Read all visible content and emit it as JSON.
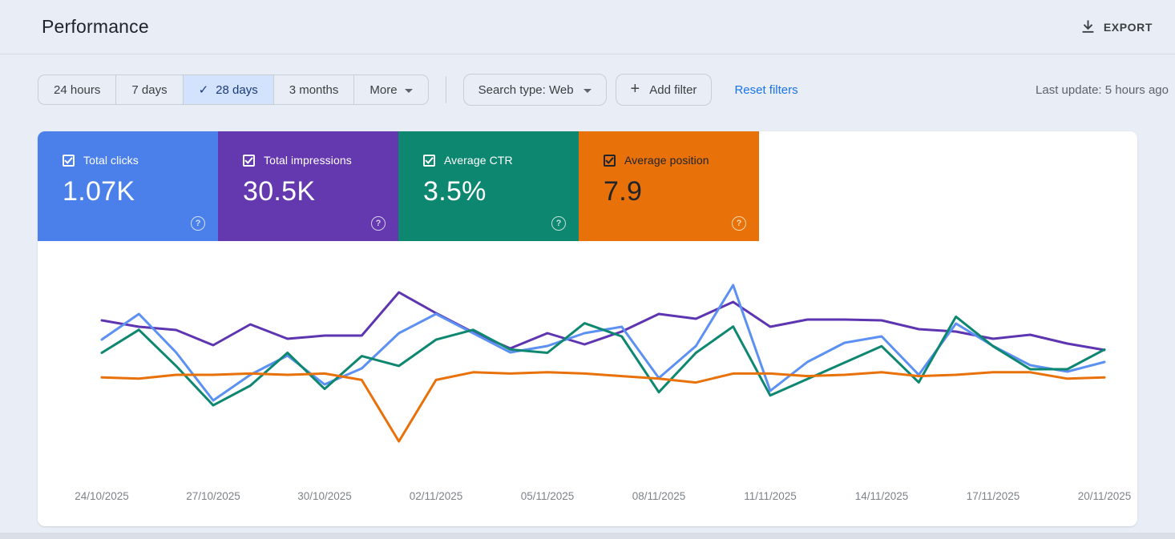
{
  "header": {
    "title": "Performance",
    "export_label": "EXPORT"
  },
  "filters": {
    "date_tabs": [
      {
        "label": "24 hours",
        "selected": false,
        "dropdown": false
      },
      {
        "label": "7 days",
        "selected": false,
        "dropdown": false
      },
      {
        "label": "28 days",
        "selected": true,
        "dropdown": false
      },
      {
        "label": "3 months",
        "selected": false,
        "dropdown": false
      },
      {
        "label": "More",
        "selected": false,
        "dropdown": true
      }
    ],
    "selected_check": "✓",
    "search_type_label": "Search type: Web",
    "add_filter_label": "Add filter",
    "add_filter_plus": "+",
    "reset_label": "Reset filters",
    "last_update": "Last update: 5 hours ago"
  },
  "metrics": [
    {
      "label": "Total clicks",
      "value": "1.07K",
      "color": "#4b80ea",
      "checked": true,
      "dark_text": false
    },
    {
      "label": "Total impressions",
      "value": "30.5K",
      "color": "#6438af",
      "checked": true,
      "dark_text": false
    },
    {
      "label": "Average CTR",
      "value": "3.5%",
      "color": "#0e8771",
      "checked": true,
      "dark_text": false
    },
    {
      "label": "Average position",
      "value": "7.9",
      "color": "#e8710a",
      "checked": true,
      "dark_text": true
    }
  ],
  "help_glyph": "?",
  "chart_data": {
    "type": "line",
    "grid": false,
    "legend_position": "none",
    "x": [
      "24/10/2025",
      "25/10/2025",
      "26/10/2025",
      "27/10/2025",
      "28/10/2025",
      "29/10/2025",
      "30/10/2025",
      "31/10/2025",
      "01/11/2025",
      "02/11/2025",
      "03/11/2025",
      "04/11/2025",
      "05/11/2025",
      "06/11/2025",
      "07/11/2025",
      "08/11/2025",
      "09/11/2025",
      "10/11/2025",
      "11/11/2025",
      "12/11/2025",
      "13/11/2025",
      "14/11/2025",
      "15/11/2025",
      "16/11/2025",
      "17/11/2025",
      "18/11/2025",
      "19/11/2025",
      "20/11/2025"
    ],
    "x_tick_labels": [
      "24/10/2025",
      "27/10/2025",
      "30/10/2025",
      "02/11/2025",
      "05/11/2025",
      "08/11/2025",
      "11/11/2025",
      "14/11/2025",
      "17/11/2025",
      "20/11/2025"
    ],
    "series": [
      {
        "name": "Total impressions",
        "color": "#5e35b1",
        "inverted": false,
        "axis_range": [
          -60,
          1620
        ],
        "values": [
          1152,
          1104,
          1080,
          966,
          1122,
          1014,
          1038,
          1038,
          1362,
          1206,
          1062,
          942,
          1056,
          972,
          1068,
          1200,
          1164,
          1290,
          1104,
          1158,
          1158,
          1152,
          1086,
          1068,
          1014,
          1044,
          978,
          930
        ]
      },
      {
        "name": "Total clicks",
        "color": "#5c90f2",
        "inverted": false,
        "axis_range": [
          -2.5,
          67.5
        ],
        "values": [
          42,
          50,
          38,
          23,
          31,
          37,
          28,
          33,
          44,
          50,
          44,
          38,
          40,
          44,
          46,
          30,
          40,
          59,
          26,
          35,
          41,
          43,
          31,
          47,
          40,
          34,
          32,
          35
        ]
      },
      {
        "name": "Average CTR",
        "color": "#0e8771",
        "inverted": false,
        "axis_range": [
          -0.24,
          6.59
        ],
        "values": [
          3.7,
          4.4,
          3.3,
          2.1,
          2.7,
          3.7,
          2.6,
          3.6,
          3.3,
          4.1,
          4.4,
          3.8,
          3.7,
          4.6,
          4.2,
          2.5,
          3.7,
          4.5,
          2.4,
          2.9,
          3.4,
          3.9,
          2.8,
          4.8,
          3.9,
          3.2,
          3.2,
          3.8
        ]
      },
      {
        "name": "Average position",
        "color": "#e8710a",
        "inverted": true,
        "axis_range": [
          -1.33,
          16.18
        ],
        "values": [
          8.0,
          8.1,
          7.8,
          7.8,
          7.7,
          7.8,
          7.7,
          8.2,
          13.0,
          8.2,
          7.6,
          7.7,
          7.6,
          7.7,
          7.9,
          8.1,
          8.4,
          7.7,
          7.7,
          7.9,
          7.8,
          7.6,
          7.9,
          7.8,
          7.6,
          7.6,
          8.1,
          8.0
        ]
      }
    ],
    "tick_label_color": "#7d8288"
  }
}
